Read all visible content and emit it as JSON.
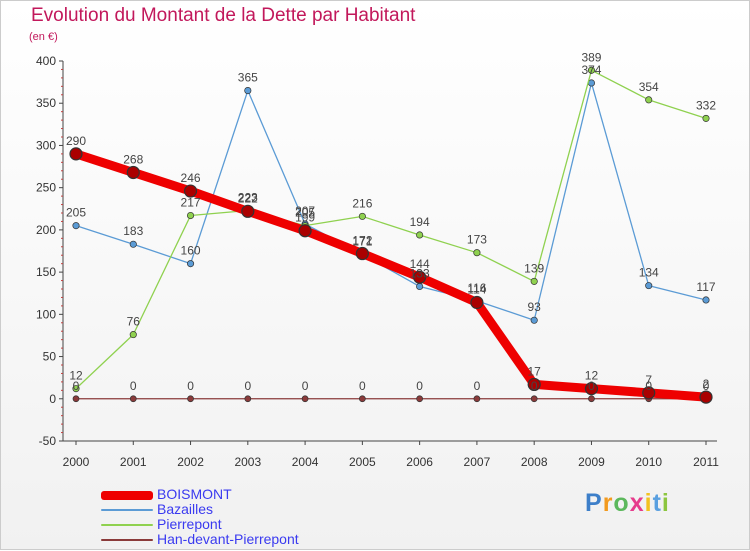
{
  "header": {
    "title": "Evolution du Montant de la Dette par Habitant",
    "subtitle": "(en €)"
  },
  "logo": {
    "letters": [
      "P",
      "r",
      "o",
      "x",
      "i",
      "t",
      "i"
    ],
    "colors": [
      "#3d7fc9",
      "#f29a1f",
      "#5cb85c",
      "#e63c8c",
      "#f2c21f",
      "#5aa0e0",
      "#8cc63f"
    ]
  },
  "chart_data": {
    "type": "line",
    "title": "Evolution du Montant de la Dette par Habitant",
    "subtitle": "(en €)",
    "xlabel": "",
    "ylabel": "",
    "x": [
      "2000",
      "2001",
      "2002",
      "2003",
      "2004",
      "2005",
      "2006",
      "2007",
      "2008",
      "2009",
      "2010",
      "2011"
    ],
    "ylim": [
      -50,
      400
    ],
    "yticks": [
      -50,
      0,
      50,
      100,
      150,
      200,
      250,
      300,
      350,
      400
    ],
    "grid": false,
    "legend": "bottom-left",
    "series": [
      {
        "name": "BOISMONT",
        "color": "#ee0000",
        "values": [
          290,
          268,
          246,
          222,
          199,
          172,
          144,
          114,
          17,
          12,
          7,
          2
        ]
      },
      {
        "name": "Bazailles",
        "color": "#5b9bd5",
        "values": [
          205,
          183,
          160,
          365,
          207,
          171,
          133,
          116,
          93,
          374,
          134,
          117
        ]
      },
      {
        "name": "Pierrepont",
        "color": "#8fd14f",
        "values": [
          12,
          76,
          217,
          223,
          205,
          216,
          194,
          173,
          139,
          389,
          354,
          332
        ]
      },
      {
        "name": "Han-devant-Pierrepont",
        "color": "#8a3a3a",
        "values": [
          0,
          0,
          0,
          0,
          0,
          0,
          0,
          0,
          0,
          0,
          0,
          0
        ]
      }
    ]
  }
}
